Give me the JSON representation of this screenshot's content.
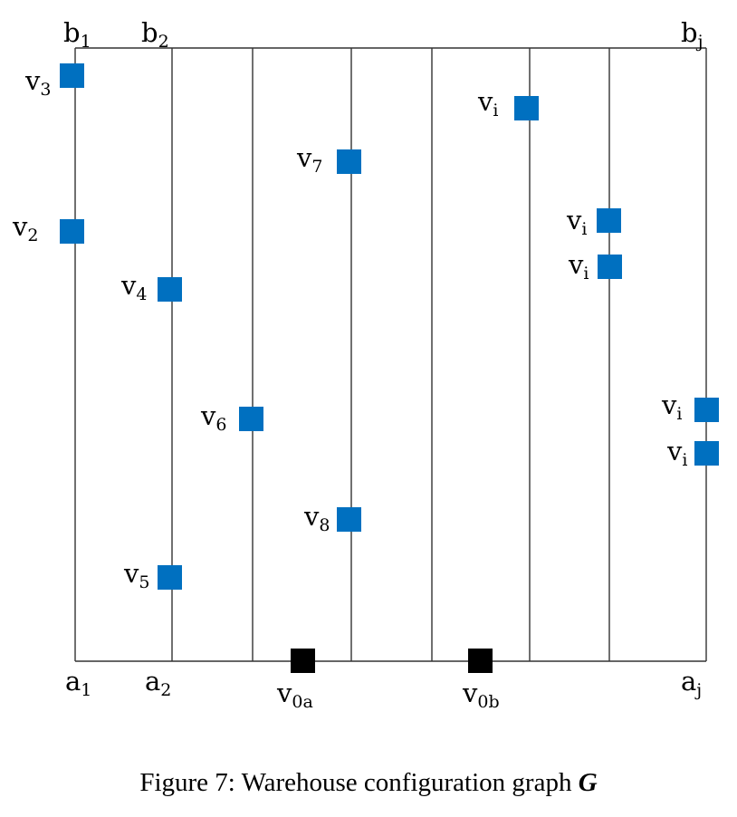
{
  "diagram": {
    "aisle_top_labels": [
      {
        "base": "b",
        "sub": "1"
      },
      {
        "base": "b",
        "sub": "2"
      },
      {
        "base": "b",
        "sub": "j"
      }
    ],
    "aisle_bottom_labels": [
      {
        "base": "a",
        "sub": "1"
      },
      {
        "base": "a",
        "sub": "2"
      },
      {
        "base": "a",
        "sub": "j"
      }
    ],
    "vertices": [
      {
        "base": "v",
        "sub": "3"
      },
      {
        "base": "v",
        "sub": "2"
      },
      {
        "base": "v",
        "sub": "4"
      },
      {
        "base": "v",
        "sub": "5"
      },
      {
        "base": "v",
        "sub": "6"
      },
      {
        "base": "v",
        "sub": "7"
      },
      {
        "base": "v",
        "sub": "8"
      },
      {
        "base": "v",
        "sub": "i"
      },
      {
        "base": "v",
        "sub": "i"
      },
      {
        "base": "v",
        "sub": "i"
      },
      {
        "base": "v",
        "sub": "i"
      },
      {
        "base": "v",
        "sub": "i"
      }
    ],
    "depots": [
      {
        "base": "v",
        "sub": "0a"
      },
      {
        "base": "v",
        "sub": "0b"
      }
    ],
    "vertex_color": "#0070C0",
    "depot_color": "#000000"
  },
  "caption": {
    "prefix": "Figure 7: Warehouse configuration graph ",
    "symbol": "G"
  }
}
